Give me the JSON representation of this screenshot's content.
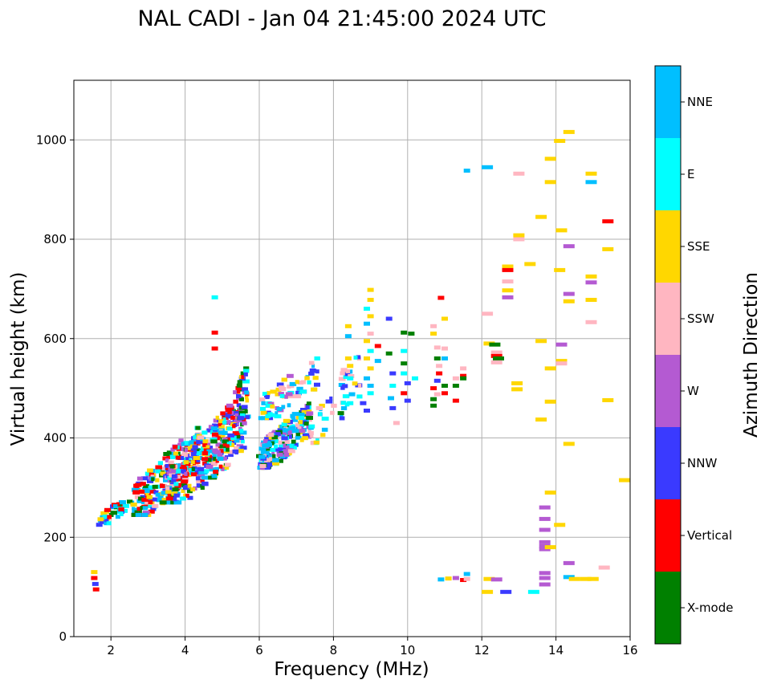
{
  "chart_data": {
    "type": "scatter",
    "title": "NAL CADI - Jan 04 21:45:00 2024 UTC",
    "xlabel": "Frequency (MHz)",
    "ylabel": "Virtual height (km)",
    "xlim": [
      1,
      16
    ],
    "ylim": [
      0,
      1120
    ],
    "xticks": [
      2,
      4,
      6,
      8,
      10,
      12,
      14,
      16
    ],
    "yticks": [
      0,
      200,
      400,
      600,
      800,
      1000
    ],
    "grid": true,
    "colorbar": {
      "label": "Azimuth Direction",
      "categories": [
        {
          "name": "X-mode",
          "color": "#008000"
        },
        {
          "name": "Vertical",
          "color": "#ff0000"
        },
        {
          "name": "NNW",
          "color": "#3a3aff"
        },
        {
          "name": "W",
          "color": "#b45ad2"
        },
        {
          "name": "SSW",
          "color": "#ffb6c1"
        },
        {
          "name": "SSE",
          "color": "#ffd700"
        },
        {
          "name": "E",
          "color": "#00ffff"
        },
        {
          "name": "NNE",
          "color": "#00bfff"
        }
      ]
    },
    "dense_regions": [
      {
        "f": [
          1.6,
          2.6
        ],
        "h": [
          225,
          285
        ],
        "n": 40,
        "colors": [
          "X-mode",
          "Vertical",
          "NNW",
          "E",
          "NNE",
          "SSE"
        ]
      },
      {
        "f": [
          2.6,
          4.4
        ],
        "h": [
          245,
          420
        ],
        "n": 260,
        "colors": [
          "Vertical",
          "Vertical",
          "Vertical",
          "NNW",
          "NNE",
          "NNE",
          "E",
          "SSW",
          "W",
          "X-mode",
          "SSE"
        ]
      },
      {
        "f": [
          3.4,
          5.6
        ],
        "h": [
          270,
          470
        ],
        "n": 260,
        "colors": [
          "NNW",
          "NNW",
          "NNE",
          "W",
          "Vertical",
          "E",
          "X-mode",
          "SSE",
          "SSW"
        ]
      },
      {
        "f": [
          4.5,
          5.7
        ],
        "h": [
          320,
          540
        ],
        "n": 120,
        "colors": [
          "NNW",
          "NNE",
          "E",
          "W",
          "X-mode",
          "SSE",
          "Vertical"
        ]
      },
      {
        "f": [
          6.0,
          7.4
        ],
        "h": [
          340,
          470
        ],
        "n": 220,
        "colors": [
          "NNE",
          "NNE",
          "NNW",
          "E",
          "W",
          "X-mode",
          "SSE",
          "SSW"
        ]
      },
      {
        "f": [
          6.0,
          7.6
        ],
        "h": [
          440,
          560
        ],
        "n": 70,
        "colors": [
          "SSE",
          "E",
          "NNW",
          "NNE",
          "SSW",
          "W"
        ]
      },
      {
        "f": [
          7.4,
          8.8
        ],
        "h": [
          390,
          580
        ],
        "n": 45,
        "colors": [
          "E",
          "NNE",
          "SSE",
          "NNW",
          "SSW"
        ]
      }
    ],
    "points": [
      {
        "f": 1.55,
        "h": 130,
        "c": "SSE"
      },
      {
        "f": 1.55,
        "h": 118,
        "c": "Vertical"
      },
      {
        "f": 1.58,
        "h": 106,
        "c": "NNW"
      },
      {
        "f": 1.6,
        "h": 95,
        "c": "Vertical"
      },
      {
        "f": 4.8,
        "h": 612,
        "c": "Vertical"
      },
      {
        "f": 4.8,
        "h": 580,
        "c": "Vertical"
      },
      {
        "f": 4.8,
        "h": 683,
        "c": "E"
      },
      {
        "f": 8.4,
        "h": 625,
        "c": "SSE"
      },
      {
        "f": 8.4,
        "h": 605,
        "c": "NNE"
      },
      {
        "f": 8.4,
        "h": 560,
        "c": "SSE"
      },
      {
        "f": 8.45,
        "h": 545,
        "c": "SSE"
      },
      {
        "f": 8.45,
        "h": 520,
        "c": "E"
      },
      {
        "f": 8.5,
        "h": 488,
        "c": "NNE"
      },
      {
        "f": 8.2,
        "h": 450,
        "c": "X-mode"
      },
      {
        "f": 8.45,
        "h": 470,
        "c": "E"
      },
      {
        "f": 9.0,
        "h": 698,
        "c": "SSE"
      },
      {
        "f": 9.0,
        "h": 678,
        "c": "SSE"
      },
      {
        "f": 8.9,
        "h": 660,
        "c": "E"
      },
      {
        "f": 9.0,
        "h": 645,
        "c": "SSE"
      },
      {
        "f": 8.9,
        "h": 630,
        "c": "NNE"
      },
      {
        "f": 9.0,
        "h": 610,
        "c": "SSW"
      },
      {
        "f": 8.9,
        "h": 595,
        "c": "SSE"
      },
      {
        "f": 9.0,
        "h": 575,
        "c": "E"
      },
      {
        "f": 8.9,
        "h": 560,
        "c": "SSE"
      },
      {
        "f": 9.0,
        "h": 540,
        "c": "SSE"
      },
      {
        "f": 8.9,
        "h": 520,
        "c": "NNE"
      },
      {
        "f": 9.0,
        "h": 505,
        "c": "NNE"
      },
      {
        "f": 9.0,
        "h": 490,
        "c": "E"
      },
      {
        "f": 8.8,
        "h": 470,
        "c": "NNW"
      },
      {
        "f": 8.9,
        "h": 455,
        "c": "NNW"
      },
      {
        "f": 9.2,
        "h": 585,
        "c": "Vertical"
      },
      {
        "f": 9.2,
        "h": 555,
        "c": "NNE"
      },
      {
        "f": 9.5,
        "h": 640,
        "c": "NNW"
      },
      {
        "f": 9.5,
        "h": 570,
        "c": "X-mode"
      },
      {
        "f": 9.6,
        "h": 530,
        "c": "NNW"
      },
      {
        "f": 9.6,
        "h": 505,
        "c": "E"
      },
      {
        "f": 9.55,
        "h": 480,
        "c": "NNE"
      },
      {
        "f": 9.6,
        "h": 460,
        "c": "NNW"
      },
      {
        "f": 9.7,
        "h": 430,
        "c": "SSW"
      },
      {
        "f": 9.9,
        "h": 612,
        "c": "X-mode"
      },
      {
        "f": 9.9,
        "h": 575,
        "c": "E"
      },
      {
        "f": 9.9,
        "h": 550,
        "c": "X-mode"
      },
      {
        "f": 9.9,
        "h": 530,
        "c": "E"
      },
      {
        "f": 10.0,
        "h": 510,
        "c": "NNW"
      },
      {
        "f": 9.9,
        "h": 490,
        "c": "Vertical"
      },
      {
        "f": 10.0,
        "h": 475,
        "c": "NNW"
      },
      {
        "f": 10.1,
        "h": 610,
        "c": "X-mode"
      },
      {
        "f": 10.2,
        "h": 520,
        "c": "E"
      },
      {
        "f": 10.7,
        "h": 625,
        "c": "SSW"
      },
      {
        "f": 10.7,
        "h": 610,
        "c": "SSE"
      },
      {
        "f": 10.8,
        "h": 582,
        "c": "SSW"
      },
      {
        "f": 10.8,
        "h": 560,
        "c": "X-mode"
      },
      {
        "f": 10.85,
        "h": 545,
        "c": "SSW"
      },
      {
        "f": 10.85,
        "h": 530,
        "c": "Vertical"
      },
      {
        "f": 10.8,
        "h": 515,
        "c": "NNW"
      },
      {
        "f": 10.7,
        "h": 500,
        "c": "Vertical"
      },
      {
        "f": 10.8,
        "h": 488,
        "c": "SSW"
      },
      {
        "f": 10.7,
        "h": 478,
        "c": "X-mode"
      },
      {
        "f": 10.7,
        "h": 465,
        "c": "X-mode"
      },
      {
        "f": 10.9,
        "h": 682,
        "c": "Vertical"
      },
      {
        "f": 11.0,
        "h": 640,
        "c": "SSE"
      },
      {
        "f": 11.0,
        "h": 580,
        "c": "SSW"
      },
      {
        "f": 11.0,
        "h": 560,
        "c": "NNE"
      },
      {
        "f": 11.0,
        "h": 505,
        "c": "X-mode"
      },
      {
        "f": 11.0,
        "h": 490,
        "c": "Vertical"
      },
      {
        "f": 11.3,
        "h": 520,
        "c": "SSW"
      },
      {
        "f": 11.3,
        "h": 505,
        "c": "X-mode"
      },
      {
        "f": 11.3,
        "h": 475,
        "c": "Vertical"
      },
      {
        "f": 11.5,
        "h": 540,
        "c": "SSW"
      },
      {
        "f": 11.5,
        "h": 525,
        "c": "Vertical"
      },
      {
        "f": 11.5,
        "h": 520,
        "c": "X-mode"
      },
      {
        "f": 11.6,
        "h": 938,
        "c": "NNE"
      },
      {
        "f": 12.15,
        "h": 945,
        "c": "NNE"
      },
      {
        "f": 12.15,
        "h": 650,
        "c": "SSW"
      },
      {
        "f": 12.2,
        "h": 590,
        "c": "SSE"
      },
      {
        "f": 12.35,
        "h": 588,
        "c": "X-mode"
      },
      {
        "f": 12.4,
        "h": 572,
        "c": "SSW"
      },
      {
        "f": 12.4,
        "h": 565,
        "c": "Vertical"
      },
      {
        "f": 12.45,
        "h": 560,
        "c": "X-mode"
      },
      {
        "f": 12.4,
        "h": 552,
        "c": "SSW"
      },
      {
        "f": 12.7,
        "h": 745,
        "c": "SSE"
      },
      {
        "f": 12.7,
        "h": 738,
        "c": "Vertical"
      },
      {
        "f": 12.7,
        "h": 715,
        "c": "SSW"
      },
      {
        "f": 12.7,
        "h": 697,
        "c": "SSE"
      },
      {
        "f": 12.7,
        "h": 683,
        "c": "W"
      },
      {
        "f": 13.0,
        "h": 932,
        "c": "SSW"
      },
      {
        "f": 13.0,
        "h": 808,
        "c": "SSE"
      },
      {
        "f": 13.0,
        "h": 800,
        "c": "SSW"
      },
      {
        "f": 13.3,
        "h": 750,
        "c": "SSE"
      },
      {
        "f": 12.95,
        "h": 510,
        "c": "SSE"
      },
      {
        "f": 12.95,
        "h": 498,
        "c": "SSE"
      },
      {
        "f": 13.6,
        "h": 845,
        "c": "SSE"
      },
      {
        "f": 13.6,
        "h": 595,
        "c": "SSE"
      },
      {
        "f": 13.6,
        "h": 437,
        "c": "SSE"
      },
      {
        "f": 13.85,
        "h": 962,
        "c": "SSE"
      },
      {
        "f": 13.85,
        "h": 915,
        "c": "SSE"
      },
      {
        "f": 13.85,
        "h": 540,
        "c": "SSE"
      },
      {
        "f": 13.85,
        "h": 473,
        "c": "SSE"
      },
      {
        "f": 13.85,
        "h": 290,
        "c": "SSE"
      },
      {
        "f": 14.1,
        "h": 998,
        "c": "SSE"
      },
      {
        "f": 14.15,
        "h": 818,
        "c": "SSE"
      },
      {
        "f": 14.1,
        "h": 738,
        "c": "SSE"
      },
      {
        "f": 14.15,
        "h": 588,
        "c": "W"
      },
      {
        "f": 14.15,
        "h": 555,
        "c": "SSE"
      },
      {
        "f": 14.15,
        "h": 550,
        "c": "SSW"
      },
      {
        "f": 14.1,
        "h": 225,
        "c": "SSE"
      },
      {
        "f": 14.35,
        "h": 1016,
        "c": "SSE"
      },
      {
        "f": 14.35,
        "h": 786,
        "c": "W"
      },
      {
        "f": 14.35,
        "h": 690,
        "c": "W"
      },
      {
        "f": 14.35,
        "h": 675,
        "c": "SSE"
      },
      {
        "f": 14.35,
        "h": 388,
        "c": "SSE"
      },
      {
        "f": 14.35,
        "h": 148,
        "c": "W"
      },
      {
        "f": 14.35,
        "h": 120,
        "c": "NNE"
      },
      {
        "f": 14.95,
        "h": 932,
        "c": "SSE"
      },
      {
        "f": 14.95,
        "h": 915,
        "c": "NNE"
      },
      {
        "f": 14.95,
        "h": 725,
        "c": "SSE"
      },
      {
        "f": 14.95,
        "h": 713,
        "c": "W"
      },
      {
        "f": 14.95,
        "h": 678,
        "c": "SSE"
      },
      {
        "f": 14.95,
        "h": 633,
        "c": "SSW"
      },
      {
        "f": 15.4,
        "h": 836,
        "c": "Vertical"
      },
      {
        "f": 15.4,
        "h": 780,
        "c": "SSE"
      },
      {
        "f": 15.4,
        "h": 476,
        "c": "SSE"
      },
      {
        "f": 15.3,
        "h": 139,
        "c": "SSW"
      },
      {
        "f": 15.85,
        "h": 315,
        "c": "SSE"
      },
      {
        "f": 13.7,
        "h": 260,
        "c": "W"
      },
      {
        "f": 13.7,
        "h": 237,
        "c": "W"
      },
      {
        "f": 13.7,
        "h": 215,
        "c": "W"
      },
      {
        "f": 13.7,
        "h": 190,
        "c": "W"
      },
      {
        "f": 13.7,
        "h": 182,
        "c": "W"
      },
      {
        "f": 13.7,
        "h": 176,
        "c": "W"
      },
      {
        "f": 13.85,
        "h": 180,
        "c": "SSE"
      },
      {
        "f": 13.7,
        "h": 128,
        "c": "W"
      },
      {
        "f": 13.7,
        "h": 118,
        "c": "W"
      },
      {
        "f": 13.7,
        "h": 105,
        "c": "W"
      },
      {
        "f": 10.9,
        "h": 115,
        "c": "NNE"
      },
      {
        "f": 11.1,
        "h": 117,
        "c": "SSE"
      },
      {
        "f": 11.3,
        "h": 118,
        "c": "W"
      },
      {
        "f": 11.5,
        "h": 114,
        "c": "Vertical"
      },
      {
        "f": 11.6,
        "h": 116,
        "c": "SSW"
      },
      {
        "f": 11.6,
        "h": 126,
        "c": "NNE"
      },
      {
        "f": 12.2,
        "h": 116,
        "c": "SSE"
      },
      {
        "f": 12.4,
        "h": 115,
        "c": "W"
      },
      {
        "f": 12.15,
        "h": 90,
        "c": "SSE"
      },
      {
        "f": 12.65,
        "h": 90,
        "c": "NNW"
      },
      {
        "f": 13.4,
        "h": 90,
        "c": "E"
      },
      {
        "f": 14.5,
        "h": 116,
        "c": "SSE"
      },
      {
        "f": 14.8,
        "h": 116,
        "c": "SSE"
      },
      {
        "f": 15.0,
        "h": 116,
        "c": "SSE"
      }
    ]
  }
}
